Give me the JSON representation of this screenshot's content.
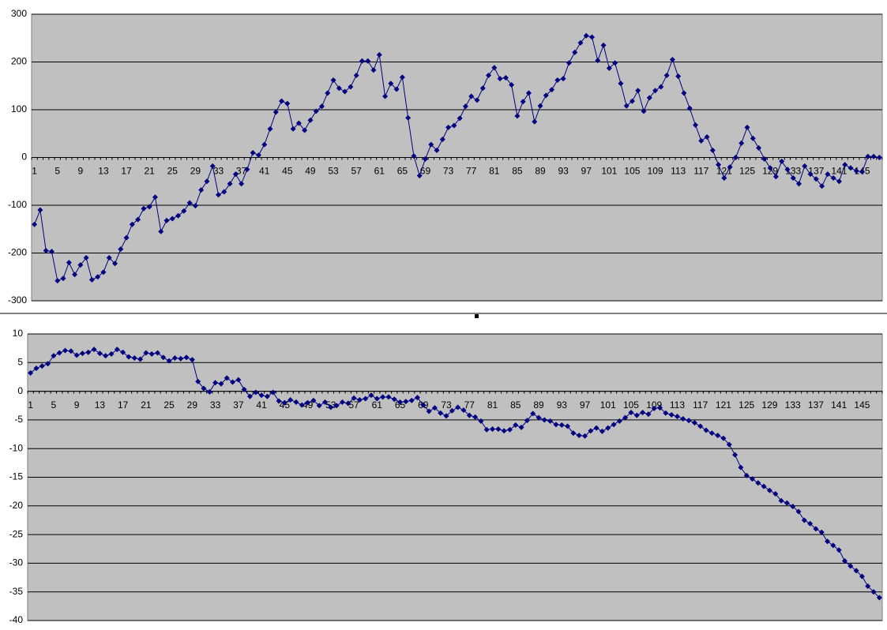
{
  "chart_data": [
    {
      "type": "line",
      "categories": [
        1,
        null,
        null,
        null,
        5,
        null,
        null,
        null,
        9,
        null,
        null,
        null,
        13,
        null,
        null,
        null,
        17,
        null,
        null,
        null,
        21,
        null,
        null,
        null,
        25,
        null,
        null,
        null,
        29,
        null,
        null,
        null,
        33,
        null,
        null,
        null,
        37,
        null,
        null,
        null,
        41,
        null,
        null,
        null,
        45,
        null,
        null,
        null,
        49,
        null,
        null,
        null,
        53,
        null,
        null,
        null,
        57,
        null,
        null,
        null,
        61,
        null,
        null,
        null,
        65,
        null,
        null,
        null,
        69,
        null,
        null,
        null,
        73,
        null,
        null,
        null,
        77,
        null,
        null,
        null,
        81,
        null,
        null,
        null,
        85,
        null,
        null,
        null,
        89,
        null,
        null,
        null,
        93,
        null,
        null,
        null,
        97,
        null,
        null,
        null,
        101,
        null,
        null,
        null,
        105,
        null,
        null,
        null,
        109,
        null,
        null,
        null,
        113,
        null,
        null,
        null,
        117,
        null,
        null,
        null,
        121,
        null,
        null,
        null,
        125,
        null,
        null,
        null,
        129,
        null,
        null,
        null,
        133,
        null,
        null,
        null,
        137,
        null,
        null,
        null,
        141,
        null,
        null,
        null,
        145,
        null,
        null,
        null
      ],
      "values": [
        -140,
        -110,
        -195,
        -197,
        -258,
        -253,
        -220,
        -245,
        -225,
        -210,
        -256,
        -250,
        -240,
        -210,
        -222,
        -192,
        -168,
        -140,
        -130,
        -107,
        -103,
        -83,
        -155,
        -132,
        -128,
        -122,
        -112,
        -95,
        -101,
        -68,
        -50,
        -18,
        -78,
        -72,
        -55,
        -35,
        -55,
        -25,
        10,
        5,
        27,
        60,
        95,
        118,
        113,
        60,
        72,
        57,
        78,
        97,
        107,
        135,
        162,
        145,
        138,
        148,
        172,
        202,
        202,
        183,
        215,
        128,
        155,
        143,
        168,
        83,
        3,
        -38,
        -3,
        27,
        15,
        38,
        63,
        67,
        82,
        107,
        128,
        120,
        145,
        172,
        188,
        165,
        167,
        152,
        87,
        117,
        135,
        75,
        108,
        130,
        142,
        162,
        165,
        198,
        220,
        240,
        255,
        252,
        203,
        235,
        187,
        198,
        155,
        108,
        118,
        140,
        97,
        125,
        140,
        148,
        172,
        205,
        170,
        135,
        103,
        68,
        35,
        43,
        15,
        -15,
        -43,
        -20,
        0,
        30,
        63,
        40,
        20,
        -3,
        -22,
        -40,
        -8,
        -25,
        -43,
        -55,
        -18,
        -35,
        -45,
        -60,
        -35,
        -43,
        -50,
        -15,
        -22,
        -28,
        -30,
        2,
        2,
        0
      ],
      "color": "#000080",
      "marker": "diamond",
      "ylim": [
        -300,
        300
      ],
      "yticks": [
        -300,
        -200,
        -100,
        0,
        100,
        200,
        300
      ],
      "grid": true
    },
    {
      "type": "line",
      "categories": [
        1,
        null,
        null,
        null,
        5,
        null,
        null,
        null,
        9,
        null,
        null,
        null,
        13,
        null,
        null,
        null,
        17,
        null,
        null,
        null,
        21,
        null,
        null,
        null,
        25,
        null,
        null,
        null,
        29,
        null,
        null,
        null,
        33,
        null,
        null,
        null,
        37,
        null,
        null,
        null,
        41,
        null,
        null,
        null,
        45,
        null,
        null,
        null,
        49,
        null,
        null,
        null,
        53,
        null,
        null,
        null,
        57,
        null,
        null,
        null,
        61,
        null,
        null,
        null,
        65,
        null,
        null,
        null,
        69,
        null,
        null,
        null,
        73,
        null,
        null,
        null,
        77,
        null,
        null,
        null,
        81,
        null,
        null,
        null,
        85,
        null,
        null,
        null,
        89,
        null,
        null,
        null,
        93,
        null,
        null,
        null,
        97,
        null,
        null,
        null,
        101,
        null,
        null,
        null,
        105,
        null,
        null,
        null,
        109,
        null,
        null,
        null,
        113,
        null,
        null,
        null,
        117,
        null,
        null,
        null,
        121,
        null,
        null,
        null,
        125,
        null,
        null,
        null,
        129,
        null,
        null,
        null,
        133,
        null,
        null,
        null,
        137,
        null,
        null,
        null,
        141,
        null,
        null,
        null,
        145,
        null,
        null,
        null
      ],
      "values": [
        3.2,
        4,
        4.4,
        4.8,
        6.2,
        6.7,
        7.1,
        7,
        6.3,
        6.6,
        6.8,
        7.3,
        6.6,
        6.2,
        6.5,
        7.3,
        6.8,
        6,
        5.8,
        5.6,
        6.7,
        6.5,
        6.7,
        5.9,
        5.3,
        5.8,
        5.7,
        5.9,
        5.5,
        1.7,
        0.5,
        -0.1,
        1.5,
        1.3,
        2.3,
        1.6,
        2,
        0.3,
        -0.9,
        -0.2,
        -0.7,
        -0.9,
        -0.2,
        -1.7,
        -2,
        -1.5,
        -1.9,
        -2.4,
        -2,
        -1.6,
        -2.5,
        -1.9,
        -2.8,
        -2.5,
        -1.9,
        -2.1,
        -1.2,
        -1.5,
        -1.3,
        -0.7,
        -1.3,
        -1,
        -1,
        -1.4,
        -1.9,
        -1.8,
        -1.6,
        -1.1,
        -2.4,
        -3.5,
        -2.9,
        -3.8,
        -4.3,
        -3.4,
        -2.8,
        -3.3,
        -4.2,
        -4.5,
        -5.2,
        -6.7,
        -6.6,
        -6.6,
        -6.9,
        -6.7,
        -5.9,
        -6.3,
        -5.1,
        -3.9,
        -4.6,
        -5,
        -5.2,
        -5.8,
        -5.9,
        -6.1,
        -7.3,
        -7.7,
        -7.8,
        -6.9,
        -6.4,
        -7,
        -6.4,
        -5.8,
        -5.2,
        -4.6,
        -3.7,
        -4.2,
        -3.7,
        -4,
        -3,
        -2.9,
        -3.8,
        -4.1,
        -4.4,
        -4.8,
        -5.1,
        -5.5,
        -6.1,
        -6.8,
        -7.3,
        -7.7,
        -8.2,
        -9.3,
        -11.1,
        -13.3,
        -14.7,
        -15.3,
        -16,
        -16.6,
        -17.3,
        -17.9,
        -19.1,
        -19.5,
        -20.1,
        -21,
        -22.5,
        -23.1,
        -24,
        -24.6,
        -26.2,
        -26.9,
        -27.7,
        -29.6,
        -30.5,
        -31.3,
        -32.3,
        -34,
        -35,
        -36
      ],
      "color": "#000080",
      "marker": "diamond",
      "ylim": [
        -40,
        10
      ],
      "yticks": [
        -40,
        -35,
        -30,
        -25,
        -20,
        -15,
        -10,
        -5,
        0,
        5,
        10
      ],
      "grid": true
    }
  ]
}
